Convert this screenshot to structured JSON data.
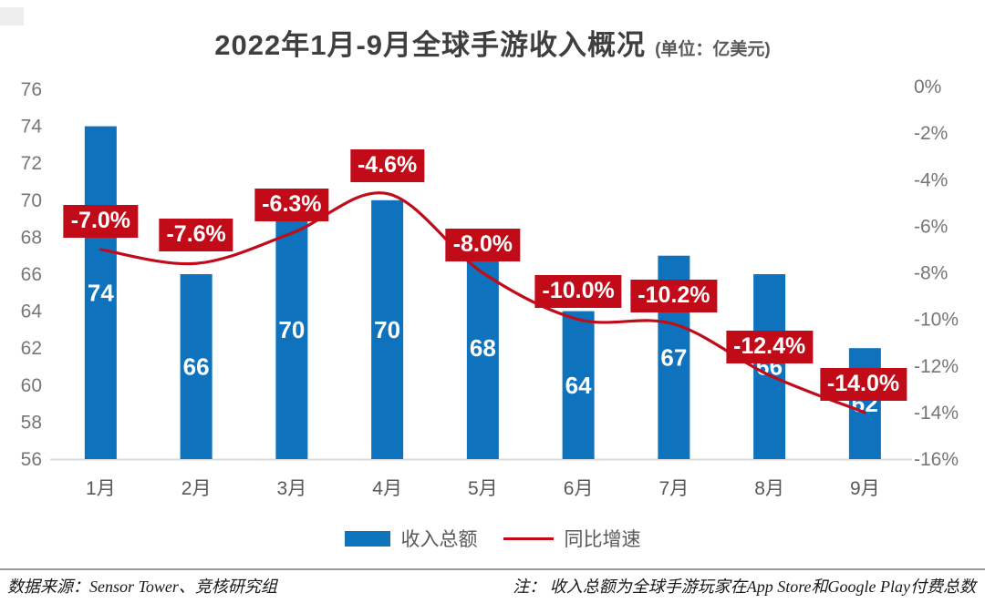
{
  "header": {
    "title": "2022年1月-9月全球手游收入概况",
    "unit_note": "(单位：亿美元)"
  },
  "chart_data": {
    "type": "bar",
    "title": "2022年1月-9月全球手游收入概况",
    "subtitle_unit": "(单位：亿美元)",
    "categories": [
      "1月",
      "2月",
      "3月",
      "4月",
      "5月",
      "6月",
      "7月",
      "8月",
      "9月"
    ],
    "series": [
      {
        "name": "收入总额",
        "type": "bar",
        "axis": "left",
        "color": "#0e72bd",
        "values": [
          74,
          66,
          70,
          70,
          68,
          64,
          67,
          66,
          62
        ],
        "value_labels": [
          "74",
          "66",
          "70",
          "70",
          "68",
          "64",
          "67",
          "66",
          "62"
        ]
      },
      {
        "name": "同比增速",
        "type": "line",
        "axis": "right",
        "color": "#c20b19",
        "values": [
          -7.0,
          -7.6,
          -6.3,
          -4.6,
          -8.0,
          -10.0,
          -10.2,
          -12.4,
          -14.0
        ],
        "point_labels": [
          "-7.0%",
          "-7.6%",
          "-6.3%",
          "-4.6%",
          "-8.0%",
          "-10.0%",
          "-10.2%",
          "-12.4%",
          "-14.0%"
        ]
      }
    ],
    "left_axis": {
      "min": 56,
      "max": 76,
      "step": 2,
      "tick_labels": [
        "76",
        "74",
        "72",
        "70",
        "68",
        "66",
        "64",
        "62",
        "60",
        "58",
        "56"
      ]
    },
    "right_axis": {
      "min": -16,
      "max": 0,
      "step": 2,
      "tick_labels": [
        "0%",
        "-2%",
        "-4%",
        "-6%",
        "-8%",
        "-10%",
        "-12%",
        "-14%",
        "-16%"
      ]
    },
    "legend_position": "bottom",
    "grid": false
  },
  "legend": {
    "bar_label": "收入总额",
    "line_label": "同比增速"
  },
  "footer": {
    "source": "数据来源：Sensor Tower、竞核研究组",
    "note": "注： 收入总额为全球手游玩家在App Store和Google Play付费总数"
  },
  "colors": {
    "bar": "#0e72bd",
    "line": "#c20b19",
    "point_label_bg": "#c20b19",
    "point_label_text": "#ffffff",
    "bar_value_text": "#ffffff",
    "axis_tick_text": "#767676",
    "x_tick_text": "#595959",
    "baseline": "#d9d9d9",
    "title_text": "#3f3f3f"
  }
}
